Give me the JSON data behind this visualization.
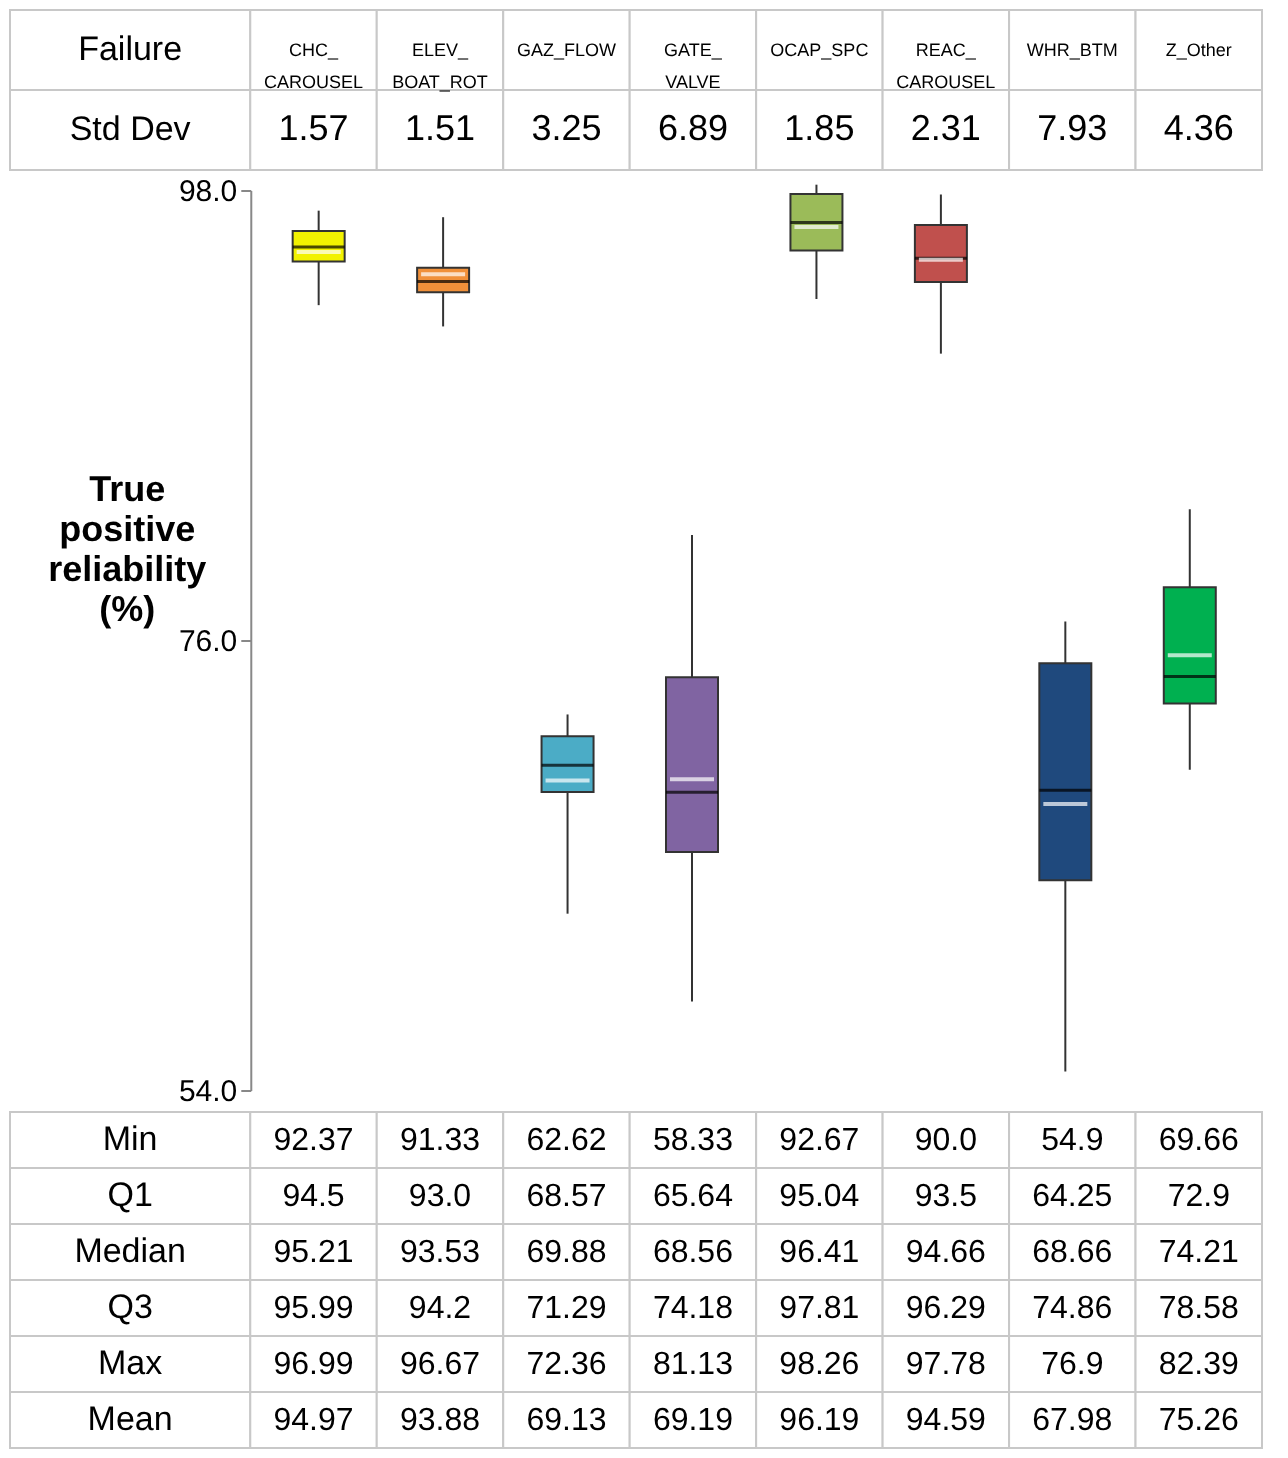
{
  "chart_data": {
    "type": "box",
    "ylabel": "True positive reliability (%)",
    "categories": [
      "CHC_ CAROUSEL",
      "ELEV_ BOAT_ROT",
      "GAZ_FLOW",
      "GATE_ VALVE",
      "OCAP_SPC",
      "REAC_ CAROUSEL",
      "WHR_BTM",
      "Z_Other"
    ],
    "colors": [
      "#f2f200",
      "#f0903a",
      "#4bacc6",
      "#8064a2",
      "#9bbb59",
      "#c0504d",
      "#1f497d",
      "#00b050"
    ],
    "boxes": [
      {
        "low": 92.37,
        "q1": 94.5,
        "median": 95.21,
        "q3": 95.99,
        "high": 96.99,
        "mean": 94.97
      },
      {
        "low": 91.33,
        "q1": 93.0,
        "median": 93.53,
        "q3": 94.2,
        "high": 96.67,
        "mean": 93.88
      },
      {
        "low": 62.62,
        "q1": 68.57,
        "median": 69.88,
        "q3": 71.29,
        "high": 72.36,
        "mean": 69.13
      },
      {
        "low": 58.33,
        "q1": 65.64,
        "median": 68.56,
        "q3": 74.18,
        "high": 81.13,
        "mean": 69.19
      },
      {
        "low": 92.67,
        "q1": 95.04,
        "median": 96.41,
        "q3": 97.81,
        "high": 98.26,
        "mean": 96.19
      },
      {
        "low": 90.0,
        "q1": 93.5,
        "median": 94.66,
        "q3": 96.29,
        "high": 97.78,
        "mean": 94.59
      },
      {
        "low": 54.9,
        "q1": 64.25,
        "median": 68.66,
        "q3": 74.86,
        "high": 76.9,
        "mean": 67.98
      },
      {
        "low": 69.66,
        "q1": 72.9,
        "median": 74.21,
        "q3": 78.58,
        "high": 82.39,
        "mean": 75.26
      }
    ],
    "ylim": [
      54,
      98
    ],
    "yticks": [
      {
        "value": 54,
        "label": "54.0"
      },
      {
        "value": 76,
        "label": "76.0"
      },
      {
        "value": 98,
        "label": "98.0"
      }
    ],
    "data_labels": true,
    "annotations": [
      "Failure",
      "Std Dev",
      "1.57",
      "1.51",
      "3.25",
      "6.89",
      "1.85",
      "2.31",
      "7.93",
      "4.36",
      "Min",
      "Q1",
      "Median",
      "Q3",
      "Max",
      "Mean",
      "92.37",
      "94.5",
      "95.21",
      "95.99",
      "96.99",
      "94.97",
      "91.33",
      "93.0",
      "93.53",
      "94.2",
      "96.67",
      "93.88",
      "62.62",
      "68.57",
      "69.88",
      "71.29",
      "72.36",
      "69.13",
      "58.33",
      "65.64",
      "68.56",
      "74.18",
      "81.13",
      "69.19",
      "92.67",
      "95.04",
      "96.41",
      "97.81",
      "98.26",
      "96.19",
      "90.0",
      "93.5",
      "94.66",
      "96.29",
      "97.78",
      "94.59",
      "54.9",
      "64.25",
      "68.66",
      "74.86",
      "76.9",
      "67.98",
      "69.66",
      "72.9",
      "74.21",
      "78.58",
      "82.39",
      "75.26"
    ]
  }
}
